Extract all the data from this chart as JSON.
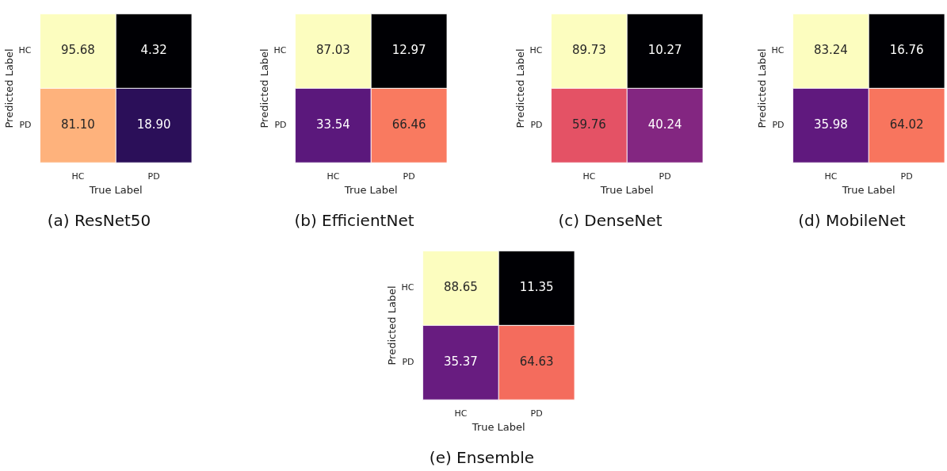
{
  "chart_data": [
    {
      "type": "heatmap",
      "title": "(a) ResNet50",
      "xlabel": "True Label",
      "ylabel": "Predicted Label",
      "categories": [
        "HC",
        "PD"
      ],
      "y_categories": [
        "HC",
        "PD"
      ],
      "cells": [
        [
          95.68,
          4.32
        ],
        [
          81.1,
          18.9
        ]
      ],
      "cell_labels": [
        [
          "95.68",
          "4.32"
        ],
        [
          "81.10",
          "18.90"
        ]
      ]
    },
    {
      "type": "heatmap",
      "title": "(b) EfficientNet",
      "xlabel": "True Label",
      "ylabel": "Predicted Label",
      "categories": [
        "HC",
        "PD"
      ],
      "y_categories": [
        "HC",
        "PD"
      ],
      "cells": [
        [
          87.03,
          12.97
        ],
        [
          33.54,
          66.46
        ]
      ],
      "cell_labels": [
        [
          "87.03",
          "12.97"
        ],
        [
          "33.54",
          "66.46"
        ]
      ]
    },
    {
      "type": "heatmap",
      "title": "(c) DenseNet",
      "xlabel": "True Label",
      "ylabel": "Predicted Label",
      "categories": [
        "HC",
        "PD"
      ],
      "y_categories": [
        "HC",
        "PD"
      ],
      "cells": [
        [
          89.73,
          10.27
        ],
        [
          59.76,
          40.24
        ]
      ],
      "cell_labels": [
        [
          "89.73",
          "10.27"
        ],
        [
          "59.76",
          "40.24"
        ]
      ]
    },
    {
      "type": "heatmap",
      "title": "(d) MobileNet",
      "xlabel": "True Label",
      "ylabel": "Predicted Label",
      "categories": [
        "HC",
        "PD"
      ],
      "y_categories": [
        "HC",
        "PD"
      ],
      "cells": [
        [
          83.24,
          16.76
        ],
        [
          35.98,
          64.02
        ]
      ],
      "cell_labels": [
        [
          "83.24",
          "16.76"
        ],
        [
          "35.98",
          "64.02"
        ]
      ]
    },
    {
      "type": "heatmap",
      "title": "(e) Ensemble",
      "xlabel": "True Label",
      "ylabel": "Predicted Label",
      "categories": [
        "HC",
        "PD"
      ],
      "y_categories": [
        "HC",
        "PD"
      ],
      "cells": [
        [
          88.65,
          11.35
        ],
        [
          35.37,
          64.63
        ]
      ],
      "cell_labels": [
        [
          "88.65",
          "11.35"
        ],
        [
          "35.37",
          "64.63"
        ]
      ]
    }
  ]
}
